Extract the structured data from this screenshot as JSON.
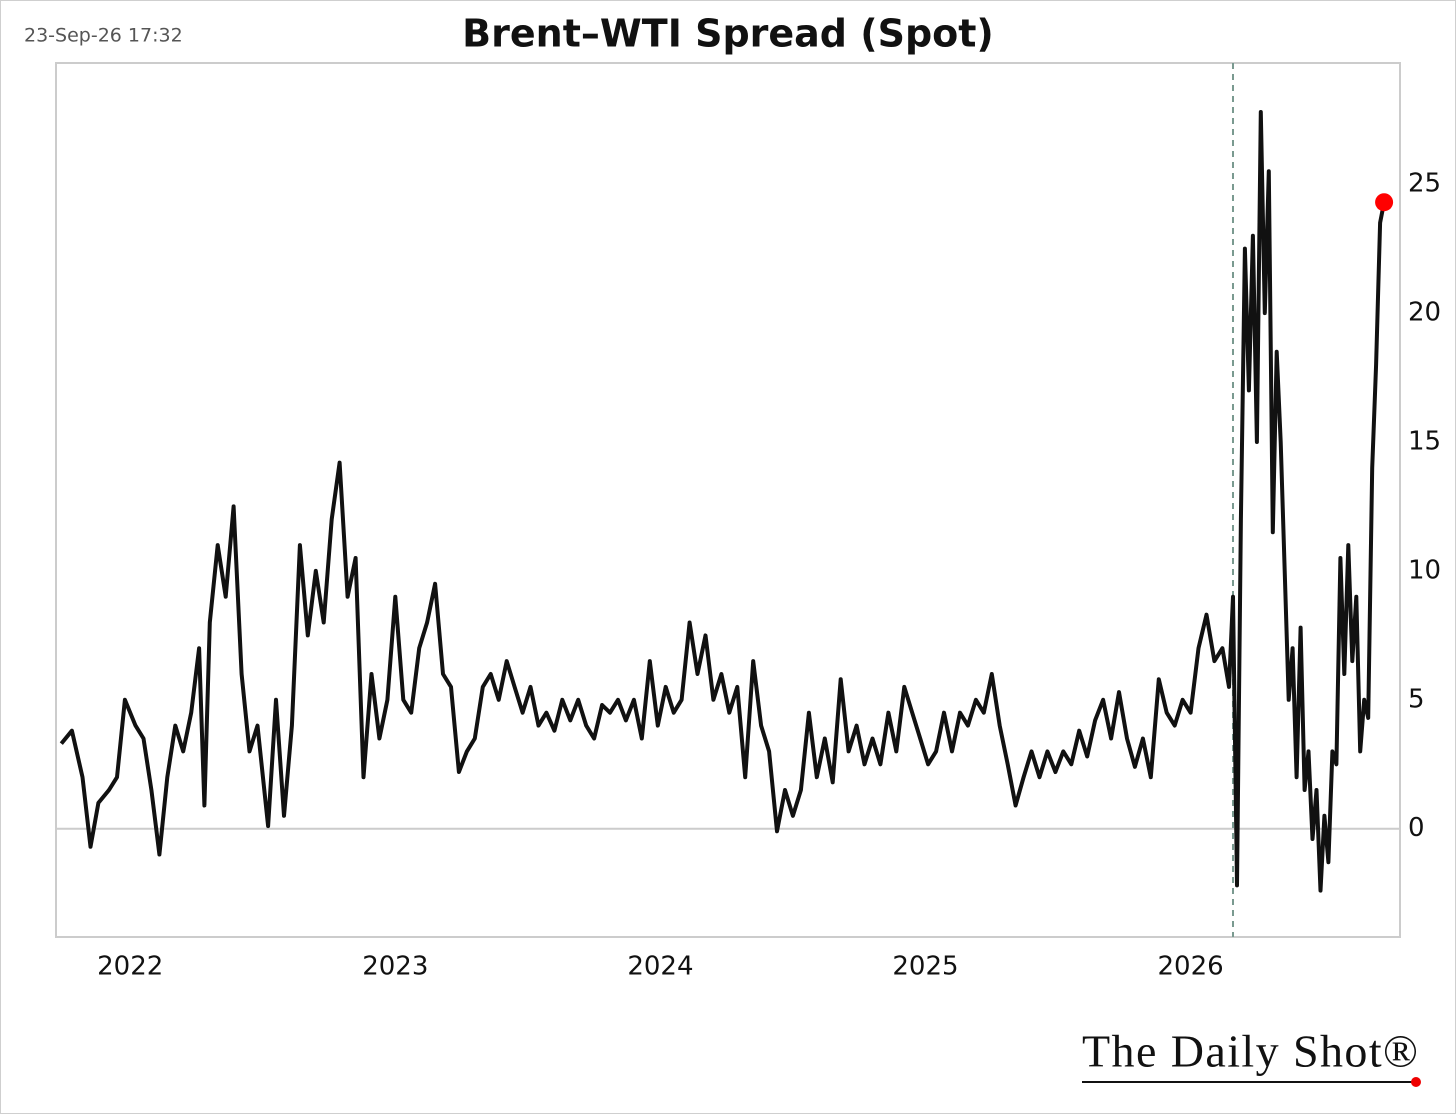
{
  "chart_data": {
    "type": "line",
    "title": "Brent–WTI Spread (Spot)",
    "timestamp": "23-Sep-26 17:32",
    "logo": "The Daily Shot®",
    "color": "#111111",
    "last_point_color": "#ff0000",
    "vline": 2026.16,
    "x": [
      2021.74,
      2021.78,
      2021.82,
      2021.85,
      2021.88,
      2021.92,
      2021.95,
      2021.98,
      2022.02,
      2022.05,
      2022.08,
      2022.11,
      2022.14,
      2022.17,
      2022.2,
      2022.23,
      2022.26,
      2022.28,
      2022.3,
      2022.33,
      2022.36,
      2022.39,
      2022.42,
      2022.45,
      2022.48,
      2022.52,
      2022.55,
      2022.58,
      2022.61,
      2022.64,
      2022.67,
      2022.7,
      2022.73,
      2022.76,
      2022.79,
      2022.82,
      2022.85,
      2022.88,
      2022.91,
      2022.94,
      2022.97,
      2023.0,
      2023.03,
      2023.06,
      2023.09,
      2023.12,
      2023.15,
      2023.18,
      2023.21,
      2023.24,
      2023.27,
      2023.3,
      2023.33,
      2023.36,
      2023.39,
      2023.42,
      2023.45,
      2023.48,
      2023.51,
      2023.54,
      2023.57,
      2023.6,
      2023.63,
      2023.66,
      2023.69,
      2023.72,
      2023.75,
      2023.78,
      2023.81,
      2023.84,
      2023.87,
      2023.9,
      2023.93,
      2023.96,
      2023.99,
      2024.02,
      2024.05,
      2024.08,
      2024.11,
      2024.14,
      2024.17,
      2024.2,
      2024.23,
      2024.26,
      2024.29,
      2024.32,
      2024.35,
      2024.38,
      2024.41,
      2024.44,
      2024.47,
      2024.5,
      2024.53,
      2024.56,
      2024.59,
      2024.62,
      2024.65,
      2024.68,
      2024.71,
      2024.74,
      2024.77,
      2024.8,
      2024.83,
      2024.86,
      2024.89,
      2024.92,
      2024.95,
      2024.98,
      2025.01,
      2025.04,
      2025.07,
      2025.1,
      2025.13,
      2025.16,
      2025.19,
      2025.22,
      2025.25,
      2025.28,
      2025.31,
      2025.34,
      2025.37,
      2025.4,
      2025.43,
      2025.46,
      2025.49,
      2025.52,
      2025.55,
      2025.58,
      2025.61,
      2025.64,
      2025.67,
      2025.7,
      2025.73,
      2025.76,
      2025.79,
      2025.82,
      2025.85,
      2025.88,
      2025.91,
      2025.94,
      2025.97,
      2026.0,
      2026.03,
      2026.06,
      2026.09,
      2026.12,
      2026.145,
      2026.16,
      2026.175,
      2026.19,
      2026.205,
      2026.22,
      2026.235,
      2026.25,
      2026.265,
      2026.28,
      2026.295,
      2026.31,
      2026.325,
      2026.34,
      2026.355,
      2026.37,
      2026.385,
      2026.4,
      2026.415,
      2026.43,
      2026.445,
      2026.46,
      2026.475,
      2026.49,
      2026.505,
      2026.52,
      2026.535,
      2026.55,
      2026.565,
      2026.58,
      2026.595,
      2026.61,
      2026.625,
      2026.64,
      2026.655,
      2026.67,
      2026.685,
      2026.7,
      2026.715,
      2026.73
    ],
    "values": [
      3.3,
      3.8,
      2.0,
      -0.7,
      1.0,
      1.5,
      2.0,
      5.0,
      4.0,
      3.5,
      1.5,
      -1.0,
      2.0,
      4.0,
      3.0,
      4.5,
      7.0,
      0.9,
      8.0,
      11.0,
      9.0,
      12.5,
      6.0,
      3.0,
      4.0,
      0.1,
      5.0,
      0.5,
      4.0,
      11.0,
      7.5,
      10.0,
      8.0,
      12.0,
      14.2,
      9.0,
      10.5,
      2.0,
      6.0,
      3.5,
      5.0,
      9.0,
      5.0,
      4.5,
      7.0,
      8.0,
      9.5,
      6.0,
      5.5,
      2.2,
      3.0,
      3.5,
      5.5,
      6.0,
      5.0,
      6.5,
      5.5,
      4.5,
      5.5,
      4.0,
      4.5,
      3.8,
      5.0,
      4.2,
      5.0,
      4.0,
      3.5,
      4.8,
      4.5,
      5.0,
      4.2,
      5.0,
      3.5,
      6.5,
      4.0,
      5.5,
      4.5,
      5.0,
      8.0,
      6.0,
      7.5,
      5.0,
      6.0,
      4.5,
      5.5,
      2.0,
      6.5,
      4.0,
      3.0,
      -0.1,
      1.5,
      0.5,
      1.5,
      4.5,
      2.0,
      3.5,
      1.8,
      5.8,
      3.0,
      4.0,
      2.5,
      3.5,
      2.5,
      4.5,
      3.0,
      5.5,
      4.5,
      3.5,
      2.5,
      3.0,
      4.5,
      3.0,
      4.5,
      4.0,
      5.0,
      4.5,
      6.0,
      4.0,
      2.5,
      0.9,
      2.0,
      3.0,
      2.0,
      3.0,
      2.2,
      3.0,
      2.5,
      3.8,
      2.8,
      4.2,
      5.0,
      3.5,
      5.3,
      3.5,
      2.4,
      3.5,
      2.0,
      5.8,
      4.5,
      4.0,
      5.0,
      4.5,
      7.0,
      8.3,
      6.5,
      7.0,
      5.5,
      9.0,
      -2.2,
      12.0,
      22.5,
      17.0,
      23.0,
      15.0,
      27.8,
      20.0,
      25.5,
      11.5,
      18.5,
      15.0,
      10.0,
      5.0,
      7.0,
      2.0,
      7.8,
      1.5,
      3.0,
      -0.4,
      1.5,
      -2.4,
      0.5,
      -1.3,
      3.0,
      2.5,
      10.5,
      6.0,
      11.0,
      6.5,
      9.0,
      3.0,
      5.0,
      4.3,
      14.0,
      18.0,
      23.5,
      24.3
    ],
    "xlim": [
      2021.72,
      2026.79
    ],
    "xticks": [
      2022,
      2023,
      2024,
      2025,
      2026
    ],
    "ylim": [
      -4.2,
      29.7
    ],
    "yticks": [
      0,
      5,
      10,
      15,
      20,
      25
    ]
  }
}
